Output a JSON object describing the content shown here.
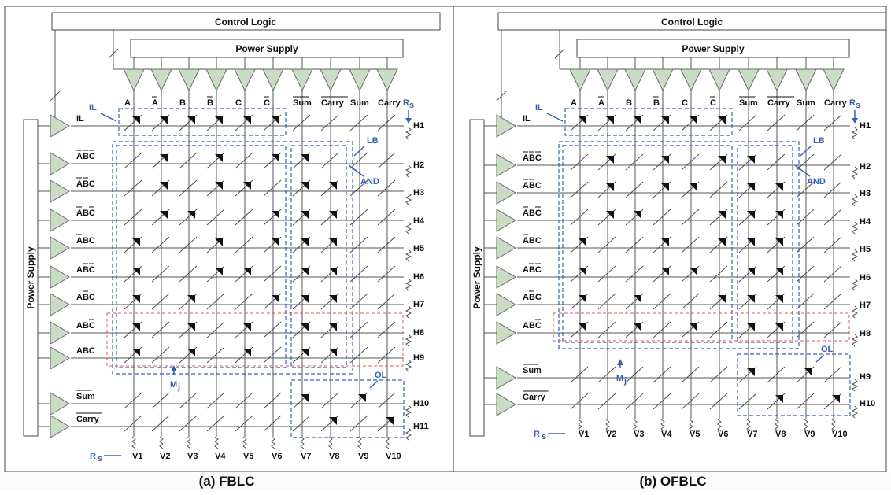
{
  "panels": [
    {
      "caption": "(a) FBLC",
      "control_logic": "Control Logic",
      "power_supply_top": "Power Supply",
      "power_supply_side": "Power Supply",
      "col_labels": [
        "A",
        "A",
        "B",
        "B",
        "C",
        "C",
        "Sum",
        "Carry",
        "Sum",
        "Carry"
      ],
      "col_bars": [
        false,
        true,
        false,
        true,
        false,
        true,
        true,
        true,
        false,
        false
      ],
      "row_labels": [
        "IL",
        "ABC",
        "ABC",
        "ABC",
        "ABC",
        "ABC",
        "ABC",
        "ABC",
        "ABC",
        "Sum",
        "Carry"
      ],
      "bar_masks": [
        [],
        [
          1,
          1,
          1
        ],
        [
          1,
          1,
          0
        ],
        [
          1,
          0,
          1
        ],
        [
          1,
          0,
          0
        ],
        [
          0,
          1,
          1
        ],
        [
          0,
          1,
          0
        ],
        [
          0,
          0,
          1
        ],
        [
          0,
          0,
          0
        ],
        [
          1
        ],
        [
          1
        ]
      ],
      "h_labels": [
        "H1",
        "H2",
        "H3",
        "H4",
        "H5",
        "H6",
        "H7",
        "H8",
        "H9",
        "H10",
        "H11"
      ],
      "v_labels": [
        "V1",
        "V2",
        "V3",
        "V4",
        "V5",
        "V6",
        "V7",
        "V8",
        "V9",
        "V10"
      ],
      "rs_top": "R",
      "rs_bottom": "R",
      "rs_sub": "s",
      "annotations": {
        "IL": "IL",
        "LB": "LB",
        "AND": "AND",
        "OL": "OL",
        "M": "M",
        "M_sub": "j"
      },
      "memristors": [
        [
          1,
          1,
          1,
          1,
          1,
          1,
          0,
          0,
          0,
          0
        ],
        [
          0,
          1,
          0,
          1,
          0,
          1,
          1,
          0,
          0,
          0
        ],
        [
          0,
          1,
          0,
          1,
          1,
          0,
          1,
          1,
          0,
          0
        ],
        [
          0,
          1,
          1,
          0,
          0,
          1,
          1,
          1,
          0,
          0
        ],
        [
          1,
          0,
          0,
          1,
          0,
          1,
          1,
          1,
          0,
          0
        ],
        [
          1,
          0,
          0,
          1,
          1,
          0,
          1,
          1,
          0,
          0
        ],
        [
          1,
          0,
          1,
          0,
          0,
          1,
          1,
          1,
          0,
          0
        ],
        [
          1,
          0,
          1,
          0,
          1,
          0,
          1,
          1,
          0,
          0
        ],
        [
          1,
          0,
          1,
          0,
          1,
          0,
          1,
          1,
          0,
          0
        ],
        [
          0,
          0,
          0,
          0,
          0,
          0,
          1,
          0,
          1,
          0
        ],
        [
          0,
          0,
          0,
          0,
          0,
          0,
          0,
          1,
          0,
          1
        ]
      ]
    },
    {
      "caption": "(b) OFBLC",
      "control_logic": "Control Logic",
      "power_supply_top": "Power Supply",
      "power_supply_side": "Power Supply",
      "col_labels": [
        "A",
        "A",
        "B",
        "B",
        "C",
        "C",
        "Sum",
        "Carry",
        "Sum",
        "Carry"
      ],
      "col_bars": [
        false,
        true,
        false,
        true,
        false,
        true,
        true,
        true,
        false,
        false
      ],
      "row_labels": [
        "IL",
        "ABC",
        "ABC",
        "ABC",
        "ABC",
        "ABC",
        "ABC",
        "ABC",
        "Sum",
        "Carry"
      ],
      "bar_masks": [
        [],
        [
          1,
          1,
          1
        ],
        [
          1,
          1,
          0
        ],
        [
          1,
          0,
          1
        ],
        [
          1,
          0,
          0
        ],
        [
          0,
          1,
          1
        ],
        [
          0,
          1,
          0
        ],
        [
          0,
          0,
          1
        ],
        [
          1
        ],
        [
          1
        ]
      ],
      "h_labels": [
        "H1",
        "H2",
        "H3",
        "H4",
        "H5",
        "H6",
        "H7",
        "H8",
        "H9",
        "H10"
      ],
      "v_labels": [
        "V1",
        "V2",
        "V3",
        "V4",
        "V5",
        "V6",
        "V7",
        "V8",
        "V9",
        "V10"
      ],
      "rs_top": "R",
      "rs_bottom": "R",
      "rs_sub": "s",
      "annotations": {
        "IL": "IL",
        "LB": "LB",
        "AND": "AND",
        "OL": "OL",
        "M": "M",
        "M_sub": "j"
      },
      "memristors": [
        [
          1,
          1,
          1,
          1,
          1,
          1,
          0,
          0,
          0,
          0
        ],
        [
          0,
          1,
          0,
          1,
          0,
          1,
          1,
          0,
          0,
          0
        ],
        [
          0,
          1,
          0,
          1,
          1,
          0,
          1,
          1,
          0,
          0
        ],
        [
          0,
          1,
          1,
          0,
          0,
          1,
          1,
          1,
          0,
          0
        ],
        [
          1,
          0,
          0,
          1,
          0,
          1,
          1,
          1,
          0,
          0
        ],
        [
          1,
          0,
          0,
          1,
          1,
          0,
          1,
          1,
          0,
          0
        ],
        [
          1,
          0,
          1,
          0,
          0,
          1,
          1,
          1,
          0,
          0
        ],
        [
          1,
          0,
          1,
          0,
          1,
          0,
          1,
          1,
          0,
          0
        ],
        [
          0,
          0,
          0,
          0,
          0,
          0,
          1,
          0,
          1,
          0
        ],
        [
          0,
          0,
          0,
          0,
          0,
          0,
          0,
          1,
          0,
          1
        ]
      ]
    }
  ]
}
